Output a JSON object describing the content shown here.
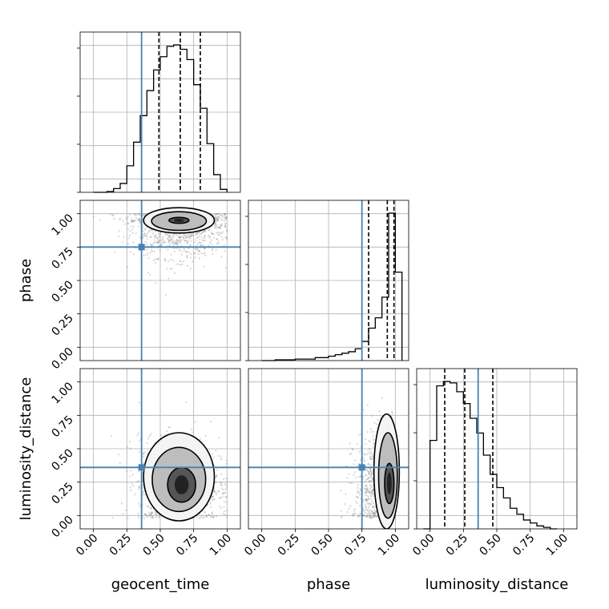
{
  "chart_data": {
    "type": "corner",
    "parameters": [
      "geocent_time",
      "phase",
      "luminosity_distance"
    ],
    "injection": {
      "geocent_time": 0.36,
      "phase": 0.75,
      "luminosity_distance": 0.36
    },
    "colors": {
      "injection": "#4682b4",
      "hist": "#000000",
      "grid": "#b0b0b0",
      "scatter": "#6e6e6e"
    },
    "tick_labels": [
      "0.00",
      "0.25",
      "0.50",
      "0.75",
      "1.00"
    ],
    "tick_values": [
      0,
      0.25,
      0.5,
      0.75,
      1.0
    ],
    "axis_range": [
      -0.1,
      1.1
    ],
    "grid": true,
    "panels": [
      {
        "id": "geocent_time-hist",
        "type": "step-histogram",
        "param": "geocent_time",
        "bin_edges": [
          0.0,
          0.05,
          0.1,
          0.15,
          0.2,
          0.25,
          0.3,
          0.35,
          0.4,
          0.45,
          0.5,
          0.55,
          0.6,
          0.65,
          0.7,
          0.75,
          0.8,
          0.85,
          0.9,
          0.95,
          1.0
        ],
        "counts": [
          0,
          0,
          0.005,
          0.025,
          0.06,
          0.18,
          0.34,
          0.52,
          0.69,
          0.83,
          0.92,
          0.99,
          1.0,
          0.97,
          0.9,
          0.73,
          0.57,
          0.33,
          0.12,
          0.02
        ],
        "quantiles": [
          0.49,
          0.65,
          0.8
        ]
      },
      {
        "id": "phase-hist",
        "type": "step-histogram",
        "param": "phase",
        "bin_edges": [
          0.0,
          0.05,
          0.1,
          0.15,
          0.2,
          0.25,
          0.3,
          0.35,
          0.4,
          0.45,
          0.5,
          0.55,
          0.6,
          0.65,
          0.7,
          0.75,
          0.8,
          0.85,
          0.9,
          0.95,
          1.0,
          1.05
        ],
        "counts": [
          0,
          0,
          0.005,
          0.005,
          0.005,
          0.01,
          0.01,
          0.01,
          0.02,
          0.02,
          0.03,
          0.04,
          0.05,
          0.06,
          0.08,
          0.13,
          0.22,
          0.29,
          0.43,
          1.0,
          0.6
        ],
        "quantiles": [
          0.8,
          0.94,
          0.99
        ]
      },
      {
        "id": "luminosity_distance-hist",
        "type": "step-histogram",
        "param": "luminosity_distance",
        "bin_edges": [
          -0.05,
          0.0,
          0.05,
          0.1,
          0.15,
          0.2,
          0.25,
          0.3,
          0.35,
          0.4,
          0.45,
          0.5,
          0.55,
          0.6,
          0.65,
          0.7,
          0.75,
          0.8,
          0.85,
          0.9,
          0.95
        ],
        "counts": [
          0.0,
          0.6,
          0.97,
          1.0,
          0.99,
          0.93,
          0.85,
          0.75,
          0.65,
          0.5,
          0.37,
          0.28,
          0.21,
          0.14,
          0.1,
          0.06,
          0.04,
          0.02,
          0.01,
          0.0
        ],
        "quantiles": [
          0.11,
          0.26,
          0.47
        ]
      },
      {
        "id": "phase-vs-geocent_time",
        "type": "density-2d",
        "x": "geocent_time",
        "y": "phase",
        "mode": [
          0.64,
          0.955
        ],
        "spread": [
          0.17,
          0.14
        ],
        "contours": [
          {
            "level": 0.39,
            "cx": 0.64,
            "cy": 0.95,
            "rx": 0.075,
            "ry": 0.022
          },
          {
            "level": 0.86,
            "cx": 0.64,
            "cy": 0.945,
            "rx": 0.205,
            "ry": 0.07
          },
          {
            "level": 0.99,
            "cx": 0.64,
            "cy": 0.95,
            "rx": 0.265,
            "ry": 0.095
          }
        ]
      },
      {
        "id": "luminosity_distance-vs-geocent_time",
        "type": "density-2d",
        "x": "geocent_time",
        "y": "luminosity_distance",
        "mode": [
          0.64,
          0.24
        ],
        "spread": [
          0.15,
          0.17
        ],
        "contours": [
          {
            "level": 0.39,
            "cx": 0.66,
            "cy": 0.23,
            "rx": 0.105,
            "ry": 0.13
          },
          {
            "level": 0.86,
            "cx": 0.64,
            "cy": 0.27,
            "rx": 0.2,
            "ry": 0.24
          },
          {
            "level": 0.99,
            "cx": 0.64,
            "cy": 0.29,
            "rx": 0.265,
            "ry": 0.33
          }
        ]
      },
      {
        "id": "luminosity_distance-vs-phase",
        "type": "density-2d",
        "x": "phase",
        "y": "luminosity_distance",
        "mode": [
          0.955,
          0.22
        ],
        "spread": [
          0.13,
          0.2
        ],
        "contours": [
          {
            "level": 0.39,
            "cx": 0.955,
            "cy": 0.24,
            "rx": 0.035,
            "ry": 0.15
          },
          {
            "level": 0.86,
            "cx": 0.945,
            "cy": 0.3,
            "rx": 0.07,
            "ry": 0.32
          },
          {
            "level": 0.99,
            "cx": 0.935,
            "cy": 0.33,
            "rx": 0.095,
            "ry": 0.43
          }
        ]
      }
    ]
  }
}
